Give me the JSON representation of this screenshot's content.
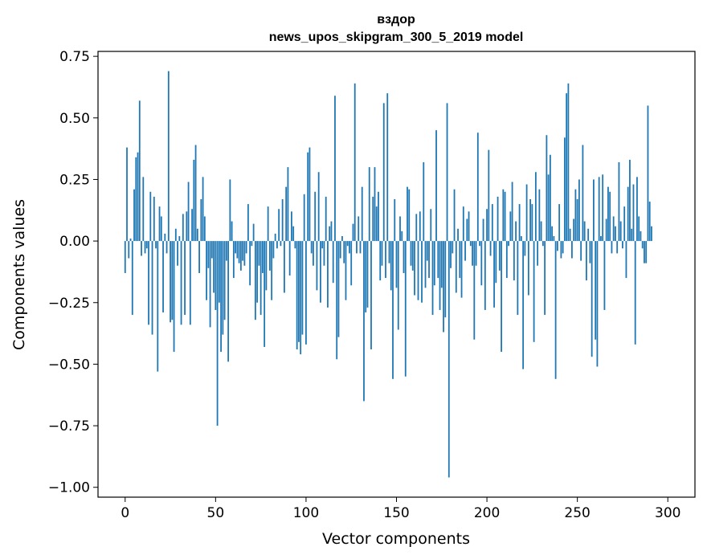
{
  "chart_data": {
    "type": "bar",
    "title": "вздор",
    "subtitle": "news_upos_skipgram_300_5_2019 model",
    "xlabel": "Vector components",
    "ylabel": "Components values",
    "xlim": [
      -15,
      315
    ],
    "ylim": [
      -1.04,
      0.77
    ],
    "xticks": [
      0,
      50,
      100,
      150,
      200,
      250,
      300
    ],
    "yticks": [
      0.75,
      0.5,
      0.25,
      0.0,
      -0.25,
      -0.5,
      -0.75,
      -1.0
    ],
    "ytick_labels": [
      "0.75",
      "0.50",
      "0.25",
      "0.00",
      "−0.25",
      "−0.50",
      "−0.75",
      "−1.00"
    ],
    "xtick_labels": [
      "0",
      "50",
      "100",
      "150",
      "200",
      "250",
      "300"
    ],
    "bar_color": "#1f77b4",
    "values": [
      -0.13,
      0.38,
      -0.07,
      0.01,
      -0.3,
      0.21,
      0.34,
      0.36,
      0.57,
      -0.06,
      0.26,
      -0.05,
      -0.03,
      -0.34,
      0.2,
      -0.38,
      0.18,
      -0.03,
      -0.53,
      0.14,
      0.1,
      -0.29,
      0.03,
      -0.05,
      0.69,
      -0.33,
      -0.32,
      -0.45,
      0.05,
      -0.1,
      0.02,
      -0.34,
      0.11,
      -0.3,
      0.12,
      0.24,
      -0.34,
      0.13,
      0.33,
      0.39,
      0.05,
      -0.13,
      0.17,
      0.26,
      0.1,
      -0.24,
      -0.11,
      -0.35,
      -0.07,
      -0.21,
      -0.28,
      -0.75,
      -0.25,
      -0.45,
      -0.38,
      -0.32,
      -0.08,
      -0.49,
      0.25,
      0.08,
      -0.15,
      -0.05,
      -0.07,
      -0.09,
      -0.12,
      -0.08,
      -0.1,
      -0.05,
      0.15,
      -0.18,
      -0.02,
      0.07,
      -0.32,
      -0.25,
      -0.1,
      -0.3,
      -0.13,
      -0.43,
      -0.2,
      0.14,
      -0.12,
      -0.24,
      -0.07,
      0.03,
      -0.03,
      0.13,
      -0.02,
      0.17,
      -0.21,
      0.22,
      0.3,
      -0.14,
      0.12,
      0.06,
      -0.03,
      -0.44,
      -0.41,
      -0.46,
      -0.38,
      0.19,
      -0.42,
      0.36,
      0.38,
      -0.05,
      -0.1,
      0.2,
      -0.2,
      0.28,
      -0.25,
      -0.03,
      -0.1,
      0.18,
      -0.27,
      0.06,
      0.08,
      -0.17,
      0.59,
      -0.48,
      -0.39,
      -0.07,
      0.02,
      -0.09,
      -0.24,
      -0.02,
      -0.05,
      -0.18,
      0.07,
      0.64,
      -0.05,
      0.1,
      -0.05,
      0.22,
      -0.65,
      -0.29,
      -0.27,
      0.3,
      -0.44,
      0.18,
      0.3,
      0.14,
      0.2,
      -0.16,
      -0.1,
      0.56,
      -0.15,
      0.6,
      -0.09,
      -0.2,
      -0.56,
      0.17,
      -0.19,
      -0.36,
      0.1,
      0.04,
      -0.13,
      -0.55,
      0.22,
      0.21,
      -0.1,
      -0.12,
      -0.22,
      0.11,
      -0.24,
      0.12,
      -0.25,
      0.32,
      -0.19,
      -0.08,
      -0.15,
      0.13,
      -0.3,
      -0.18,
      0.45,
      -0.15,
      -0.28,
      -0.19,
      -0.37,
      -0.31,
      0.56,
      -0.96,
      -0.11,
      -0.05,
      0.21,
      -0.21,
      0.05,
      -0.15,
      -0.23,
      0.14,
      -0.08,
      0.09,
      0.12,
      -0.02,
      -0.1,
      -0.4,
      -0.1,
      0.44,
      -0.02,
      -0.18,
      0.09,
      -0.28,
      0.13,
      0.37,
      -0.06,
      0.15,
      -0.27,
      -0.17,
      0.18,
      -0.12,
      -0.45,
      0.21,
      0.2,
      -0.15,
      -0.02,
      0.12,
      0.24,
      -0.16,
      0.08,
      -0.3,
      0.15,
      0.02,
      -0.52,
      -0.06,
      0.23,
      -0.22,
      0.17,
      0.15,
      -0.41,
      0.28,
      -0.1,
      0.21,
      0.08,
      -0.02,
      -0.3,
      0.43,
      0.27,
      0.35,
      0.06,
      0.02,
      -0.56,
      -0.04,
      0.15,
      -0.07,
      -0.05,
      0.42,
      0.6,
      0.64,
      0.05,
      -0.07,
      0.09,
      0.21,
      0.17,
      0.25,
      -0.08,
      0.39,
      0.08,
      -0.16,
      0.05,
      -0.09,
      -0.47,
      0.25,
      -0.4,
      -0.51,
      0.26,
      0.02,
      0.27,
      -0.28,
      0.09,
      0.22,
      0.2,
      -0.05,
      0.1,
      0.06,
      -0.05,
      0.32,
      0.08,
      -0.03,
      0.14,
      -0.15,
      0.22,
      0.33,
      0.05,
      0.23,
      -0.42,
      0.26,
      0.1,
      0.04,
      -0.03,
      -0.09,
      -0.09,
      0.55,
      0.16,
      0.06
    ]
  }
}
